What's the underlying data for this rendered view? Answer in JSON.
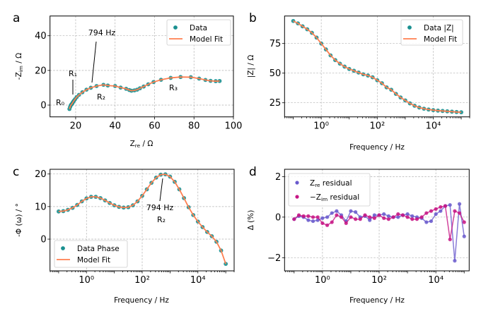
{
  "colors": {
    "data": "#1a9090",
    "fit": "#ff7f50",
    "zre_residual": "#6a5acd",
    "zim_residual": "#c71585"
  },
  "chart_data": [
    {
      "panel": "a",
      "type": "scatter",
      "xlabel": {
        "pre": "Z",
        "sub": "re",
        "post": " / Ω"
      },
      "ylabel": {
        "pre": "-Z",
        "sub": "im",
        "post": " / Ω"
      },
      "xlim": [
        7,
        100
      ],
      "ylim": [
        -6.8,
        51.4
      ],
      "xticks": [
        20,
        40,
        60,
        80,
        100
      ],
      "xtick_labels": [
        "20",
        "40",
        "60",
        "80",
        "100"
      ],
      "yticks": [
        0,
        20,
        40
      ],
      "ytick_labels": [
        "0",
        "20",
        "40"
      ],
      "grid": true,
      "legend": "top-right",
      "legend_entries": [
        "Data",
        "Model Fit"
      ],
      "annotations": [
        "794 Hz",
        "R₀",
        "R₁",
        "R₂",
        "R₃"
      ],
      "series": [
        {
          "name": "Data",
          "x": [
            93.0,
            91.0,
            88.4,
            85.8,
            82.6,
            78.4,
            73.2,
            68.2,
            63.3,
            59.5,
            56.8,
            54.5,
            52.6,
            51.2,
            49.8,
            48.3,
            47.2,
            45.6,
            42.8,
            40.0,
            36.3,
            34.1,
            30.6,
            27.7,
            25.5,
            23.4,
            21.7,
            20.5,
            19.7,
            19.1,
            18.7,
            18.4,
            18.1,
            17.8,
            17.5,
            17.2,
            16.85
          ],
          "y": [
            13.9,
            13.8,
            14.0,
            14.5,
            15.3,
            16.1,
            16.2,
            15.7,
            14.6,
            13.3,
            12.0,
            10.7,
            9.7,
            8.9,
            8.5,
            8.3,
            8.7,
            9.4,
            10.1,
            11.0,
            11.3,
            11.7,
            11.0,
            10.0,
            8.9,
            7.4,
            5.9,
            4.6,
            3.4,
            2.5,
            1.8,
            1.2,
            0.7,
            0.3,
            -0.2,
            -1.05,
            -2.25
          ]
        },
        {
          "name": "Model Fit"
        }
      ]
    },
    {
      "panel": "b",
      "type": "scatter",
      "xlabel": "Frequency / Hz",
      "ylabel": "|Z| / Ω",
      "xscale": "log",
      "xlim": [
        0.049,
        200000
      ],
      "ylim": [
        13.1,
        98.2
      ],
      "xticks": [
        1,
        100,
        10000
      ],
      "xtick_labels": [
        "10⁰",
        "10²",
        "10⁴"
      ],
      "yticks": [
        25,
        50,
        75
      ],
      "ytick_labels": [
        "25",
        "50",
        "75"
      ],
      "grid": true,
      "legend": "top-right",
      "legend_entries": [
        "Data |Z|",
        "Model Fit"
      ],
      "series": [
        {
          "name": "Data |Z|",
          "x_log10": [
            -1,
            -0.833,
            -0.667,
            -0.5,
            -0.333,
            -0.167,
            0,
            0.167,
            0.333,
            0.5,
            0.667,
            0.833,
            1,
            1.167,
            1.333,
            1.5,
            1.667,
            1.833,
            2,
            2.167,
            2.333,
            2.5,
            2.667,
            2.833,
            3,
            3.167,
            3.333,
            3.5,
            3.667,
            3.833,
            4,
            4.167,
            4.333,
            4.5,
            4.667,
            4.833,
            5
          ],
          "y": [
            94,
            92,
            89.5,
            87,
            84,
            80,
            75,
            70,
            65,
            61,
            58,
            55.5,
            53.5,
            52,
            50.5,
            49,
            48,
            46.5,
            44,
            41.5,
            38,
            36,
            32.5,
            29.5,
            27,
            24.5,
            22.5,
            21,
            20,
            19.3,
            18.8,
            18.4,
            18.1,
            17.8,
            17.5,
            17.2,
            17
          ]
        },
        {
          "name": "Model Fit"
        }
      ]
    },
    {
      "panel": "c",
      "type": "scatter",
      "xlabel": "Frequency / Hz",
      "ylabel": "-Φ (ω) / °",
      "xscale": "log",
      "xlim": [
        0.049,
        200000
      ],
      "ylim": [
        -9.74,
        21.45
      ],
      "xticks": [
        1,
        100,
        10000
      ],
      "xtick_labels": [
        "10⁰",
        "10²",
        "10⁴"
      ],
      "yticks": [
        0,
        10,
        20
      ],
      "ytick_labels": [
        "0",
        "10",
        "20"
      ],
      "grid": true,
      "legend": "bottom-left",
      "legend_entries": [
        "Data Phase",
        "Model Fit"
      ],
      "annotations": [
        "794 Hz",
        "R₂"
      ],
      "series": [
        {
          "name": "Data Phase",
          "x_log10": [
            -1,
            -0.833,
            -0.667,
            -0.5,
            -0.333,
            -0.167,
            0,
            0.167,
            0.333,
            0.5,
            0.667,
            0.833,
            1,
            1.167,
            1.333,
            1.5,
            1.667,
            1.833,
            2,
            2.167,
            2.333,
            2.5,
            2.667,
            2.833,
            3,
            3.167,
            3.333,
            3.5,
            3.667,
            3.833,
            4,
            4.167,
            4.333,
            4.5,
            4.667,
            4.833,
            5
          ],
          "y": [
            8.5,
            8.6,
            9.0,
            9.6,
            10.5,
            11.6,
            12.5,
            13.0,
            13.0,
            12.6,
            11.9,
            11.1,
            10.4,
            9.9,
            9.7,
            9.8,
            10.4,
            11.6,
            13.3,
            15.3,
            17.3,
            18.9,
            19.8,
            19.9,
            19.2,
            17.6,
            15.3,
            12.6,
            9.8,
            7.4,
            5.4,
            3.7,
            2.2,
            0.9,
            -0.8,
            -3.5,
            -7.6
          ]
        },
        {
          "name": "Model Fit"
        }
      ]
    },
    {
      "panel": "d",
      "type": "line",
      "xlabel": "Frequency / Hz",
      "ylabel": "Δ (%)",
      "xscale": "log",
      "xlim": [
        0.046,
        150000
      ],
      "ylim": [
        -2.65,
        2.36
      ],
      "xticks": [
        1,
        100,
        10000
      ],
      "xtick_labels": [
        "10⁰",
        "10²",
        "10⁴"
      ],
      "yticks": [
        -2,
        0,
        2
      ],
      "ytick_labels": [
        "−2",
        "0",
        "2"
      ],
      "grid": true,
      "legend": "top-left",
      "legend_entries": [
        {
          "pre": "Z",
          "sub": "re",
          "post": " residual"
        },
        {
          "pre": "−Z",
          "sub": "im",
          "post": " residual"
        }
      ],
      "series": [
        {
          "name": "Zre residual",
          "x_log10": [
            -1,
            -0.833,
            -0.667,
            -0.5,
            -0.333,
            -0.167,
            0,
            0.167,
            0.333,
            0.5,
            0.667,
            0.833,
            1,
            1.167,
            1.333,
            1.5,
            1.667,
            1.833,
            2,
            2.167,
            2.333,
            2.5,
            2.667,
            2.833,
            3,
            3.167,
            3.333,
            3.5,
            3.667,
            3.833,
            4,
            4.167,
            4.333,
            4.5,
            4.667,
            4.833,
            5
          ],
          "y": [
            -0.1,
            0.05,
            0.0,
            -0.15,
            -0.2,
            -0.15,
            -0.05,
            0.0,
            0.2,
            0.3,
            0.1,
            -0.2,
            0.3,
            0.25,
            0.0,
            0.05,
            -0.15,
            0.1,
            0.1,
            0.15,
            0.05,
            0.0,
            0.0,
            0.1,
            0.15,
            0.05,
            0.0,
            -0.05,
            -0.25,
            -0.2,
            0.15,
            0.3,
            0.55,
            0.6,
            -2.15,
            0.65,
            -0.95
          ]
        },
        {
          "name": "−Zim residual",
          "x_log10": [
            -1,
            -0.833,
            -0.667,
            -0.5,
            -0.333,
            -0.167,
            0,
            0.167,
            0.333,
            0.5,
            0.667,
            0.833,
            1,
            1.167,
            1.333,
            1.5,
            1.667,
            1.833,
            2,
            2.167,
            2.333,
            2.5,
            2.667,
            2.833,
            3,
            3.167,
            3.333,
            3.5,
            3.667,
            3.833,
            4,
            4.167,
            4.333,
            4.5,
            4.667,
            4.833,
            5
          ],
          "y": [
            -0.1,
            0.1,
            0.05,
            0.05,
            0.0,
            0.0,
            -0.3,
            -0.4,
            -0.25,
            0.1,
            0.0,
            -0.3,
            0.0,
            -0.1,
            -0.1,
            0.1,
            0.0,
            -0.05,
            0.1,
            -0.05,
            -0.1,
            0.0,
            0.15,
            0.1,
            0.0,
            -0.1,
            -0.1,
            0.0,
            0.2,
            0.3,
            0.4,
            0.5,
            0.55,
            -1.1,
            0.3,
            0.2,
            -0.25
          ]
        }
      ]
    }
  ]
}
